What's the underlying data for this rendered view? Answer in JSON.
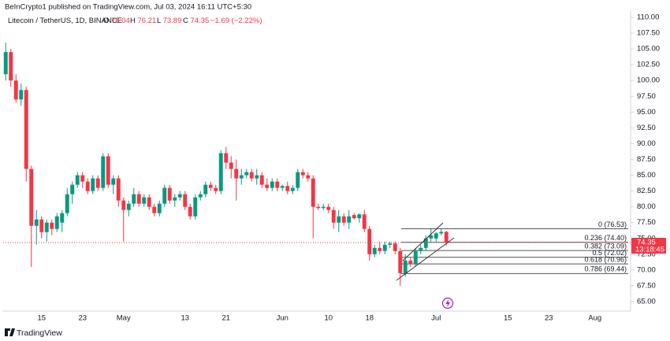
{
  "chart_data": {
    "type": "candlestick",
    "publisher_line": "BeInCrypto1 published on TradingView.com, Jul 03, 2024 16:11 UTC+5:30",
    "symbol": "Litecoin / TetherUS, 1D, BINANCE",
    "legend_labels": [
      "O",
      "H",
      "L",
      "C"
    ],
    "change": "−1.69 (−2.22%)",
    "countdown": "13:18:45",
    "brand": "TradingView",
    "up_color": "#089981",
    "down_color": "#f23645",
    "categories": [
      null,
      null,
      null,
      null,
      null,
      null,
      null,
      "15",
      null,
      null,
      null,
      null,
      null,
      null,
      null,
      "23",
      null,
      null,
      null,
      null,
      null,
      null,
      null,
      "May",
      null,
      null,
      null,
      null,
      null,
      null,
      null,
      null,
      null,
      null,
      null,
      "13",
      null,
      null,
      null,
      null,
      null,
      null,
      null,
      "21",
      null,
      null,
      null,
      null,
      null,
      null,
      null,
      null,
      null,
      null,
      "Jun",
      null,
      null,
      null,
      null,
      null,
      null,
      null,
      null,
      "10",
      null,
      null,
      null,
      null,
      null,
      null,
      null,
      "18",
      null,
      null,
      null,
      null,
      null,
      null,
      null,
      null,
      null,
      null,
      null,
      null,
      "Jul",
      null,
      null,
      null,
      null,
      null,
      null,
      null,
      null,
      null,
      null,
      null,
      null,
      null,
      "15",
      null,
      null,
      null,
      null,
      null,
      null,
      null,
      "23",
      null,
      null,
      null,
      null,
      null,
      null,
      null,
      null,
      "Aug",
      null,
      null,
      null,
      null,
      null,
      null
    ],
    "open": [
      101,
      104.5,
      100,
      97,
      98.5,
      86,
      77,
      78,
      76,
      77.5,
      76.5,
      77.5,
      79,
      82,
      83.5,
      85,
      84,
      82.5,
      84.5,
      83,
      88,
      83.5,
      84.5,
      81,
      79.5,
      80.5,
      82,
      80.5,
      81.5,
      80,
      79,
      80.5,
      83,
      81,
      81.5,
      82,
      80,
      78.5,
      81.5,
      82,
      83.5,
      83,
      82.5,
      88.5,
      87,
      86,
      84.5,
      85,
      85.5,
      84.5,
      85,
      83.5,
      83,
      84,
      83,
      83.3,
      82.5,
      83,
      85.5,
      85,
      84.5,
      80,
      79.8,
      80,
      79.5,
      77.5,
      78.5,
      77.5,
      78.7,
      78.2,
      78.8,
      76.5,
      72.5,
      73.5,
      73,
      74,
      74.2,
      73,
      69.5,
      71.5,
      71,
      73,
      73.5,
      75,
      75,
      75.8,
      76.04,
      null,
      null,
      null,
      null,
      null,
      null,
      null,
      null,
      null,
      null,
      null,
      null,
      null,
      null,
      null,
      null,
      null,
      null,
      null,
      null,
      null,
      null,
      null,
      null,
      null,
      null,
      null,
      null,
      null,
      null,
      null,
      null,
      null,
      null,
      null
    ],
    "high": [
      106,
      105,
      101,
      99.5,
      99,
      86.5,
      79.5,
      78.5,
      78,
      78,
      79,
      79.5,
      83,
      84,
      85.5,
      85.5,
      84.5,
      85,
      85,
      88.5,
      88.5,
      85,
      85,
      81.5,
      81,
      83,
      82.5,
      82,
      82,
      80.5,
      81,
      83.5,
      83.5,
      82,
      82.5,
      82.5,
      80.5,
      82,
      82.5,
      84,
      84,
      83.5,
      89,
      89.5,
      88,
      87.5,
      86,
      86,
      86,
      86,
      85.5,
      84.5,
      84.5,
      84.5,
      83.5,
      84,
      83.5,
      86,
      86,
      85.5,
      85,
      80.5,
      80.5,
      80.5,
      80,
      79.5,
      79,
      79.5,
      79,
      79,
      79.5,
      77,
      74,
      74.5,
      74.5,
      74.5,
      74.5,
      73.5,
      72.5,
      72,
      73.5,
      74,
      75.5,
      76.5,
      76,
      76.5,
      76.21,
      null,
      null,
      null,
      null,
      null,
      null,
      null,
      null,
      null,
      null,
      null,
      null,
      null,
      null,
      null,
      null,
      null,
      null,
      null,
      null,
      null,
      null,
      null,
      null,
      null,
      null,
      null,
      null,
      null,
      null,
      null,
      null,
      null,
      null,
      null
    ],
    "low": [
      100,
      99,
      96.5,
      96,
      84,
      70.5,
      74,
      75,
      74.5,
      75.5,
      76,
      76,
      78.5,
      80.5,
      83,
      83,
      82,
      82,
      82.5,
      82.5,
      83,
      82,
      80,
      74.5,
      78.5,
      80,
      80,
      80,
      79.5,
      78.5,
      78.5,
      80,
      80.5,
      80,
      81,
      79.5,
      78,
      78,
      81,
      81.5,
      82.5,
      82,
      82,
      86,
      84.5,
      81,
      83.5,
      84.5,
      84,
      83.5,
      83,
      82.5,
      82.5,
      82.5,
      82.5,
      82,
      82,
      82.5,
      84.5,
      84,
      75,
      79.5,
      79.5,
      79,
      76.5,
      76,
      77,
      76.5,
      78,
      77.5,
      76,
      71.5,
      72,
      72.5,
      72.5,
      73.5,
      72.5,
      67.5,
      69,
      70.5,
      70.5,
      72.5,
      73,
      74.5,
      74.5,
      75.5,
      73.89,
      null,
      null,
      null,
      null,
      null,
      null,
      null,
      null,
      null,
      null,
      null,
      null,
      null,
      null,
      null,
      null,
      null,
      null,
      null,
      null,
      null,
      null,
      null,
      null,
      null,
      null,
      null,
      null,
      null,
      null,
      null,
      null,
      null,
      null,
      null
    ],
    "close": [
      104.5,
      100,
      97,
      98.5,
      86,
      77,
      78,
      76,
      77.5,
      76.5,
      78.5,
      79,
      82,
      83.5,
      85,
      84,
      82.5,
      84.5,
      83,
      88,
      83.5,
      84.5,
      81,
      79.5,
      80.5,
      82,
      80.5,
      81.5,
      80,
      79,
      80.5,
      83,
      81,
      81.5,
      82,
      80,
      78.5,
      81.5,
      82,
      83.5,
      83,
      82.5,
      88.5,
      87,
      86,
      84.5,
      85,
      85.5,
      84.5,
      85,
      83.5,
      83,
      84,
      83,
      83.3,
      82.5,
      83,
      85.5,
      85,
      84.5,
      80,
      79.8,
      80,
      79.5,
      77.5,
      78.5,
      77.5,
      78.5,
      78.2,
      78.8,
      76.5,
      72.5,
      73.5,
      73,
      74,
      74.2,
      73,
      69.5,
      71.5,
      71,
      73,
      73.5,
      75,
      75.5,
      75.8,
      76.04,
      74.35,
      null,
      null,
      null,
      null,
      null,
      null,
      null,
      null,
      null,
      null,
      null,
      null,
      null,
      null,
      null,
      null,
      null,
      null,
      null,
      null,
      null,
      null,
      null,
      null,
      null,
      null,
      null,
      null,
      null,
      null,
      null,
      null,
      null,
      null,
      null
    ],
    "ylim": [
      63.5,
      111
    ],
    "yticks": [
      {
        "value": 65,
        "label": "65.00"
      },
      {
        "value": 67.5,
        "label": "67.50"
      },
      {
        "value": 70,
        "label": "70.00"
      },
      {
        "value": 72.5,
        "label": "72.50"
      },
      {
        "value": 75,
        "label": "75.00"
      },
      {
        "value": 77.5,
        "label": "77.50"
      },
      {
        "value": 80,
        "label": "80.00"
      },
      {
        "value": 82.5,
        "label": "82.50"
      },
      {
        "value": 85,
        "label": "85.00"
      },
      {
        "value": 87.5,
        "label": "87.50"
      },
      {
        "value": 90,
        "label": "90.00"
      },
      {
        "value": 92.5,
        "label": "92.50"
      },
      {
        "value": 95,
        "label": "95.00"
      },
      {
        "value": 97.5,
        "label": "97.50"
      },
      {
        "value": 100,
        "label": "100.00"
      },
      {
        "value": 102.5,
        "label": "102.50"
      },
      {
        "value": 105,
        "label": "105.00"
      },
      {
        "value": 107.5,
        "label": "107.50"
      },
      {
        "value": 110,
        "label": "110.00"
      }
    ],
    "fib_levels": [
      76.53,
      74.4,
      73.09,
      72.02,
      70.96,
      69.44
    ],
    "fib_labels": [
      "0 (76.53)",
      "0.236 (74.40)",
      "0.382 (73.09)",
      "0.5 (72.02)",
      "0.618 (70.96)",
      "0.786 (69.44)"
    ]
  }
}
